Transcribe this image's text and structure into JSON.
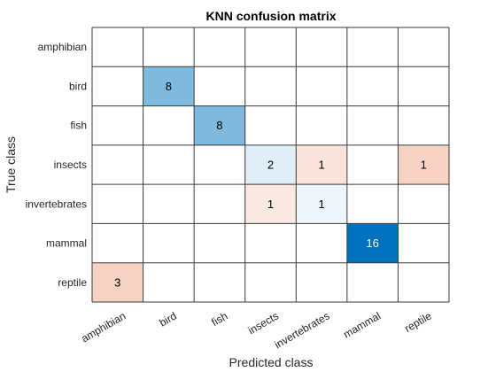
{
  "chart_data": {
    "type": "heatmap",
    "title": "KNN confusion matrix",
    "xlabel": "Predicted class",
    "ylabel": "True class",
    "classes": [
      "amphibian",
      "bird",
      "fish",
      "insects",
      "invertebrates",
      "mammal",
      "reptile"
    ],
    "matrix": [
      [
        0,
        0,
        0,
        0,
        0,
        0,
        0
      ],
      [
        0,
        8,
        0,
        0,
        0,
        0,
        0
      ],
      [
        0,
        0,
        8,
        0,
        0,
        0,
        0
      ],
      [
        0,
        0,
        0,
        2,
        1,
        0,
        1
      ],
      [
        0,
        0,
        0,
        1,
        1,
        0,
        0
      ],
      [
        0,
        0,
        0,
        0,
        0,
        16,
        0
      ],
      [
        3,
        0,
        0,
        0,
        0,
        0,
        0
      ]
    ],
    "colors": {
      "correct_max": "#0072bd",
      "incorrect_max": "#d95319",
      "empty": "#ffffff",
      "grid": "#3a3a3a"
    }
  }
}
